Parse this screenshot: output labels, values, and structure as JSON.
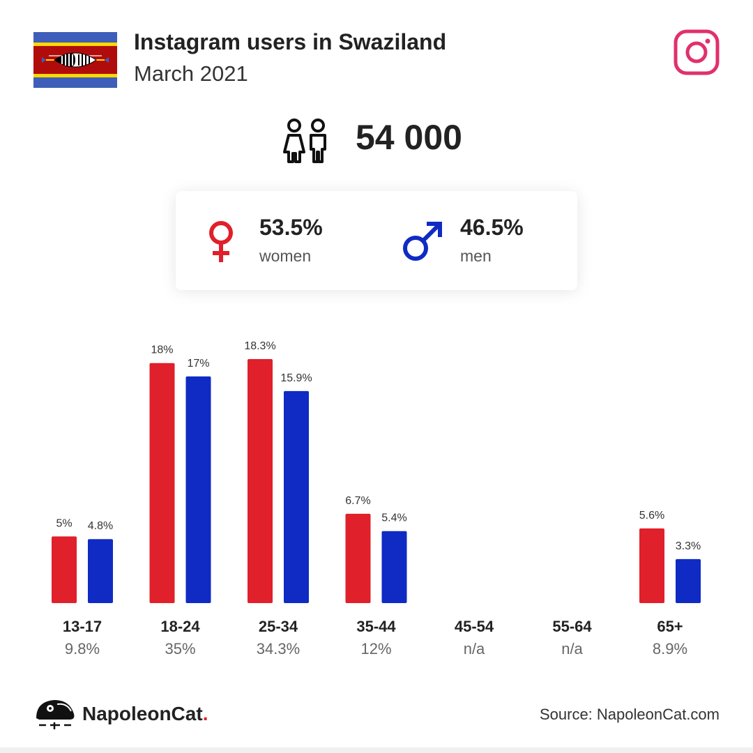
{
  "header": {
    "title": "Instagram users in Swaziland",
    "subtitle": "March 2021"
  },
  "icons": {
    "flag": "eswatini-flag",
    "brand": "instagram-icon",
    "people": "people-icon",
    "women": "venus-icon",
    "men": "mars-icon",
    "logo": "napoleoncat-logo-icon"
  },
  "summary": {
    "total": "54 000",
    "women_pct": "53.5%",
    "women_label": "women",
    "men_pct": "46.5%",
    "men_label": "men"
  },
  "colors": {
    "women": "#e0202a",
    "men": "#0f2bc4",
    "instagram": "#e1306c",
    "flag_blue": "#3e5eb9",
    "flag_yellow": "#ffd900",
    "flag_red": "#b10c0c"
  },
  "chart_data": {
    "type": "bar",
    "categories": [
      "13-17",
      "18-24",
      "25-34",
      "35-44",
      "45-54",
      "55-64",
      "65+"
    ],
    "category_totals": [
      "9.8%",
      "35%",
      "34.3%",
      "12%",
      "n/a",
      "n/a",
      "8.9%"
    ],
    "series": [
      {
        "values": [
          5,
          18,
          18.3,
          6.7,
          null,
          null,
          5.6
        ],
        "labels": [
          "5%",
          "18%",
          "18.3%",
          "6.7%",
          "",
          "",
          "5.6%"
        ],
        "color": "#e0202a"
      },
      {
        "values": [
          4.8,
          17,
          15.9,
          5.4,
          null,
          null,
          3.3
        ],
        "labels": [
          "4.8%",
          "17%",
          "15.9%",
          "5.4%",
          "",
          "",
          "3.3%"
        ],
        "color": "#0f2bc4"
      }
    ],
    "ylim": [
      0,
      18.3
    ],
    "grid": false,
    "legend": "none"
  },
  "footer": {
    "brand_name": "NapoleonCat",
    "brand_dot": ".",
    "source": "Source: NapoleonCat.com"
  }
}
